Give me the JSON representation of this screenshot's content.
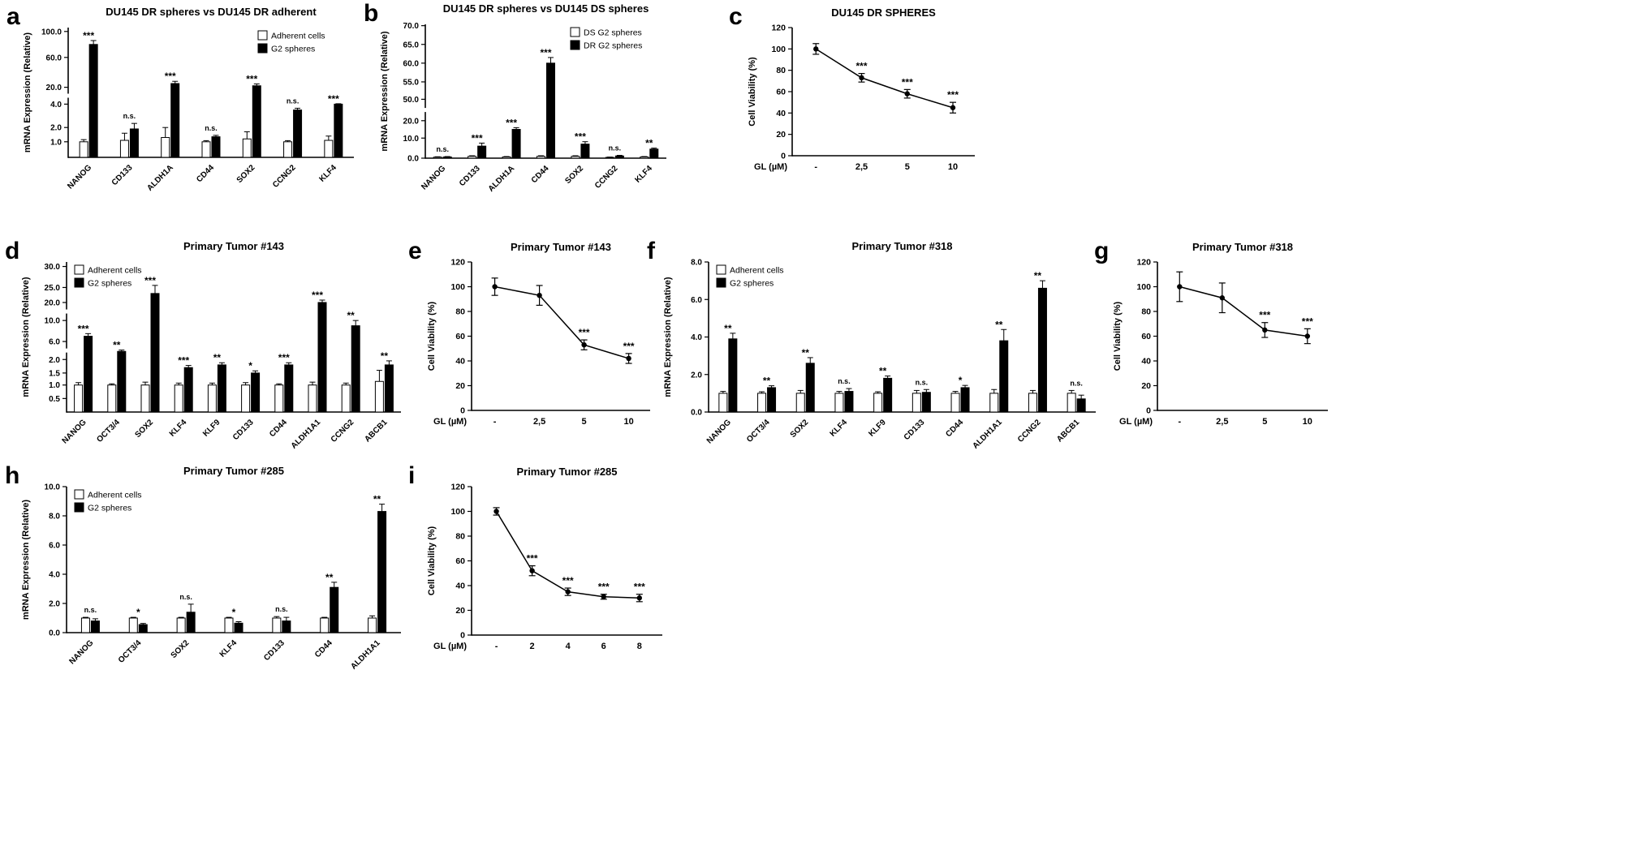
{
  "chart_data": [
    {
      "panel": "a",
      "type": "bar",
      "title": "DU145 DR  spheres vs DU145 DR adherent",
      "ylabel": "mRNA Expression (Relative)",
      "legend_pos": "right",
      "categories": [
        "NANOG",
        "CD133",
        "ALDH1A",
        "CD44",
        "SOX2",
        "CCNG2",
        "KLF4"
      ],
      "sig": [
        "***",
        "n.s.",
        "***",
        "n.s.",
        "***",
        "n.s.",
        "***"
      ],
      "series": [
        {
          "name": "Adherent cells",
          "fill": "#ffffff",
          "values": [
            1.0,
            1.1,
            1.3,
            1.0,
            1.2,
            1.0,
            1.1
          ],
          "errors": [
            0.15,
            0.5,
            0.7,
            0.08,
            0.5,
            0.08,
            0.3
          ]
        },
        {
          "name": "G2 spheres",
          "fill": "#000000",
          "values": [
            80,
            1.9,
            25,
            1.35,
            22,
            3.5,
            4.0
          ],
          "errors": [
            6,
            0.45,
            3,
            0.1,
            2.5,
            0.15,
            0.4
          ]
        }
      ],
      "yticks": [
        [
          "1.0",
          0.12
        ],
        [
          "2.0",
          0.23
        ],
        [
          "4.0",
          0.41
        ],
        [
          "20.0",
          0.54
        ],
        [
          "60.0",
          0.77
        ],
        [
          "100.0",
          0.97
        ]
      ],
      "breaks": [
        0.475
      ]
    },
    {
      "panel": "b",
      "type": "bar",
      "title": "DU145 DR spheres vs DU145 DS spheres",
      "ylabel": "mRNA Expression (Relative)",
      "legend_pos": "right",
      "categories": [
        "NANOG",
        "CD133",
        "ALDH1A",
        "CD44",
        "SOX2",
        "CCNG2",
        "KLF4"
      ],
      "sig": [
        "n.s.",
        "***",
        "***",
        "***",
        "***",
        "n.s.",
        "**"
      ],
      "series": [
        {
          "name": "DS G2 spheres",
          "fill": "#ffffff",
          "values": [
            0.5,
            0.9,
            0.6,
            0.9,
            0.9,
            0.4,
            0.6
          ],
          "errors": [
            0.2,
            0.3,
            0.2,
            0.3,
            0.3,
            0.15,
            0.2
          ]
        },
        {
          "name": "DR G2 spheres",
          "fill": "#000000",
          "values": [
            0.6,
            6.0,
            15.0,
            60.0,
            7.0,
            1.1,
            4.5
          ],
          "errors": [
            0.2,
            1.5,
            1.0,
            1.5,
            1.2,
            0.3,
            0.5
          ]
        }
      ],
      "yticks": [
        [
          "0.0",
          0
        ],
        [
          "10.0",
          0.15
        ],
        [
          "20.0",
          0.28
        ],
        [
          "50.0",
          0.44
        ],
        [
          "55.0",
          0.57
        ],
        [
          "60.0",
          0.71
        ],
        [
          "65.0",
          0.85
        ],
        [
          "70.0",
          0.99
        ]
      ],
      "breaks": [
        0.36
      ]
    },
    {
      "panel": "c",
      "type": "line",
      "title": "DU145 DR SPHERES",
      "ylabel": "Cell Viability (%)",
      "xlabel": "GL (µM)",
      "categories": [
        "-",
        "2,5",
        "5",
        "10"
      ],
      "values": [
        100,
        73,
        58,
        45
      ],
      "errors": [
        5,
        4,
        4,
        5
      ],
      "sig": [
        "",
        "***",
        "***",
        "***"
      ],
      "ymax": 120,
      "yticks": [
        [
          "0",
          0
        ],
        [
          "20",
          0.1667
        ],
        [
          "40",
          0.3333
        ],
        [
          "60",
          0.5
        ],
        [
          "80",
          0.6667
        ],
        [
          "100",
          0.8333
        ],
        [
          "120",
          1
        ]
      ]
    },
    {
      "panel": "d",
      "type": "bar",
      "title": "Primary Tumor #143",
      "ylabel": "mRNA Expression (Relative)",
      "legend_pos": "left",
      "categories": [
        "NANOG",
        "OCT3/4",
        "SOX2",
        "KLF4",
        "KLF9",
        "CD133",
        "CD44",
        "ALDH1A1",
        "CCNG2",
        "ABCB1"
      ],
      "sig": [
        "***",
        "**",
        "***",
        "***",
        "**",
        "*",
        "***",
        "***",
        "**",
        "**"
      ],
      "series": [
        {
          "name": "Adherent cells",
          "fill": "#ffffff",
          "values": [
            1,
            1,
            1,
            1,
            1,
            1,
            1,
            1,
            1,
            1.15
          ],
          "errors": [
            0.1,
            0.05,
            0.12,
            0.08,
            0.08,
            0.1,
            0.05,
            0.12,
            0.08,
            0.45
          ]
        },
        {
          "name": "G2 spheres",
          "fill": "#000000",
          "values": [
            7,
            3.8,
            23,
            1.7,
            1.8,
            1.5,
            1.8,
            20,
            9,
            1.8
          ],
          "errors": [
            0.5,
            0.3,
            2.5,
            0.08,
            0.08,
            0.08,
            0.08,
            0.8,
            1.0,
            0.15
          ]
        }
      ],
      "yticks": [
        [
          "0.5",
          0.09
        ],
        [
          "1.0",
          0.18
        ],
        [
          "1.5",
          0.26
        ],
        [
          "2.0",
          0.35
        ],
        [
          "6.0",
          0.47
        ],
        [
          "10.0",
          0.61
        ],
        [
          "20.0",
          0.73
        ],
        [
          "25.0",
          0.83
        ],
        [
          "30.0",
          0.97
        ]
      ],
      "breaks": [
        0.41,
        0.67
      ]
    },
    {
      "panel": "e",
      "type": "line",
      "title": "Primary Tumor #143",
      "ylabel": "Cell Viability (%)",
      "xlabel": "GL (µM)",
      "categories": [
        "-",
        "2,5",
        "5",
        "10"
      ],
      "values": [
        100,
        93,
        53,
        42
      ],
      "errors": [
        7,
        8,
        4,
        4
      ],
      "sig": [
        "",
        "",
        "***",
        "***"
      ],
      "ymax": 120,
      "yticks": [
        [
          "0",
          0
        ],
        [
          "20",
          0.1667
        ],
        [
          "40",
          0.3333
        ],
        [
          "60",
          0.5
        ],
        [
          "80",
          0.6667
        ],
        [
          "100",
          0.8333
        ],
        [
          "120",
          1
        ]
      ]
    },
    {
      "panel": "f",
      "type": "bar",
      "title": "Primary Tumor #318",
      "ylabel": "mRNA Expression (Relative)",
      "legend_pos": "left",
      "categories": [
        "NANOG",
        "OCT3/4",
        "SOX2",
        "KLF4",
        "KLF9",
        "CD133",
        "CD44",
        "ALDH1A1",
        "CCNG2",
        "ABCB1"
      ],
      "sig": [
        "**",
        "**",
        "**",
        "n.s.",
        "**",
        "n.s.",
        "*",
        "**",
        "**",
        "n.s."
      ],
      "series": [
        {
          "name": "Adherent cells",
          "fill": "#ffffff",
          "values": [
            1,
            1,
            1,
            1,
            1,
            1,
            1,
            1,
            1,
            1
          ],
          "errors": [
            0.1,
            0.08,
            0.15,
            0.1,
            0.08,
            0.15,
            0.1,
            0.2,
            0.15,
            0.15
          ]
        },
        {
          "name": "G2 spheres",
          "fill": "#000000",
          "values": [
            3.9,
            1.3,
            2.6,
            1.1,
            1.8,
            1.05,
            1.3,
            3.8,
            6.6,
            0.7
          ],
          "errors": [
            0.3,
            0.1,
            0.3,
            0.15,
            0.12,
            0.15,
            0.12,
            0.6,
            0.4,
            0.2
          ]
        }
      ],
      "yticks": [
        [
          "0.0",
          0
        ],
        [
          "2.0",
          0.25
        ],
        [
          "4.0",
          0.5
        ],
        [
          "6.0",
          0.75
        ],
        [
          "8.0",
          1.0
        ]
      ]
    },
    {
      "panel": "g",
      "type": "line",
      "title": "Primary Tumor #318",
      "ylabel": "Cell Viability (%)",
      "xlabel": "GL (µM)",
      "categories": [
        "-",
        "2,5",
        "5",
        "10"
      ],
      "values": [
        100,
        91,
        65,
        60
      ],
      "errors": [
        12,
        12,
        6,
        6
      ],
      "sig": [
        "",
        "",
        "***",
        "***"
      ],
      "ymax": 120,
      "yticks": [
        [
          "0",
          0
        ],
        [
          "20",
          0.1667
        ],
        [
          "40",
          0.3333
        ],
        [
          "60",
          0.5
        ],
        [
          "80",
          0.6667
        ],
        [
          "100",
          0.8333
        ],
        [
          "120",
          1
        ]
      ]
    },
    {
      "panel": "h",
      "type": "bar",
      "title": "Primary Tumor #285",
      "ylabel": "mRNA Expression (Relative)",
      "legend_pos": "left",
      "categories": [
        "NANOG",
        "OCT3/4",
        "SOX2",
        "KLF4",
        "CD133",
        "CD44",
        "ALDH1A1"
      ],
      "sig": [
        "n.s.",
        "*",
        "n.s.",
        "*",
        "n.s.",
        "**",
        "**"
      ],
      "series": [
        {
          "name": "Adherent cells",
          "fill": "#ffffff",
          "values": [
            1,
            1,
            1,
            1,
            1,
            1,
            1
          ],
          "errors": [
            0.05,
            0.05,
            0.05,
            0.05,
            0.1,
            0.05,
            0.15
          ]
        },
        {
          "name": "G2 spheres",
          "fill": "#000000",
          "values": [
            0.8,
            0.55,
            1.4,
            0.65,
            0.8,
            3.1,
            8.3
          ],
          "errors": [
            0.15,
            0.08,
            0.55,
            0.1,
            0.25,
            0.35,
            0.5
          ]
        }
      ],
      "yticks": [
        [
          "0.0",
          0
        ],
        [
          "2.0",
          0.2
        ],
        [
          "4.0",
          0.4
        ],
        [
          "6.0",
          0.6
        ],
        [
          "8.0",
          0.8
        ],
        [
          "10.0",
          1.0
        ]
      ]
    },
    {
      "panel": "i",
      "type": "line",
      "title": "Primary Tumor #285",
      "ylabel": "Cell Viability (%)",
      "xlabel": "GL (µM)",
      "categories": [
        "-",
        "2",
        "4",
        "6",
        "8"
      ],
      "values": [
        100,
        52,
        35,
        31,
        30
      ],
      "errors": [
        3,
        4,
        3,
        2,
        3
      ],
      "sig": [
        "",
        "***",
        "***",
        "***",
        "***"
      ],
      "ymax": 120,
      "yticks": [
        [
          "0",
          0
        ],
        [
          "20",
          0.1667
        ],
        [
          "40",
          0.3333
        ],
        [
          "60",
          0.5
        ],
        [
          "80",
          0.6667
        ],
        [
          "100",
          0.8333
        ],
        [
          "120",
          1
        ]
      ]
    }
  ],
  "colors": {
    "axis": "#000000",
    "bar_open": "#ffffff",
    "bar_filled": "#000000",
    "background": "#ffffff"
  }
}
